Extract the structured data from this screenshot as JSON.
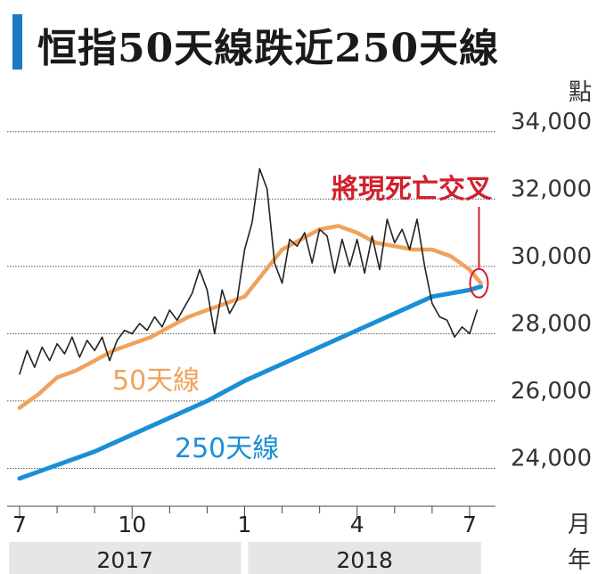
{
  "title": "恒指50天線跌近250天線",
  "colors": {
    "accent_bar": "#1d78c4",
    "index_line": "#222222",
    "ma50": "#f0a25c",
    "ma250": "#1a8fd6",
    "callout": "#d0202e",
    "grid": "#555555",
    "year_band": "#e6e6e6"
  },
  "chart_data": {
    "type": "line",
    "y_unit_label": "點",
    "x_unit_label": "月",
    "year_unit_label": "年",
    "ylim": [
      22900,
      35000
    ],
    "xlim": [
      0,
      12.5
    ],
    "y_ticks": [
      {
        "value": 34000,
        "label": "34,000"
      },
      {
        "value": 32000,
        "label": "32,000"
      },
      {
        "value": 30000,
        "label": "30,000"
      },
      {
        "value": 28000,
        "label": "28,000"
      },
      {
        "value": 26000,
        "label": "26,000"
      },
      {
        "value": 24000,
        "label": "24,000"
      }
    ],
    "x_ticks": [
      {
        "x": 0,
        "label": "7"
      },
      {
        "x": 3,
        "label": "10"
      },
      {
        "x": 6,
        "label": "1"
      },
      {
        "x": 9,
        "label": "4"
      },
      {
        "x": 12,
        "label": "7"
      }
    ],
    "years": [
      {
        "label": "2017",
        "from": 0,
        "to": 6
      },
      {
        "label": "2018",
        "from": 6,
        "to": 12.4
      }
    ],
    "series": [
      {
        "name": "",
        "role": "index",
        "x": [
          0,
          0.2,
          0.4,
          0.6,
          0.8,
          1.0,
          1.2,
          1.4,
          1.6,
          1.8,
          2.0,
          2.2,
          2.4,
          2.6,
          2.8,
          3.0,
          3.2,
          3.4,
          3.6,
          3.8,
          4.0,
          4.2,
          4.4,
          4.6,
          4.8,
          5.0,
          5.2,
          5.4,
          5.6,
          5.8,
          6.0,
          6.2,
          6.4,
          6.6,
          6.8,
          7.0,
          7.2,
          7.4,
          7.6,
          7.8,
          8.0,
          8.2,
          8.4,
          8.6,
          8.8,
          9.0,
          9.2,
          9.4,
          9.6,
          9.8,
          10.0,
          10.2,
          10.4,
          10.6,
          10.8,
          11.0,
          11.2,
          11.4,
          11.6,
          11.8,
          12.0,
          12.2
        ],
        "values": [
          26800,
          27500,
          27000,
          27600,
          27200,
          27700,
          27400,
          27900,
          27300,
          27800,
          27500,
          27900,
          27200,
          27800,
          28100,
          28000,
          28300,
          28100,
          28500,
          28200,
          28700,
          28400,
          28800,
          29200,
          29900,
          29300,
          28000,
          29300,
          28600,
          29000,
          30500,
          31300,
          32900,
          32300,
          30100,
          29500,
          30800,
          30600,
          31000,
          30100,
          31100,
          30900,
          29800,
          30800,
          30000,
          30800,
          29800,
          30900,
          29900,
          31400,
          30700,
          31100,
          30500,
          31400,
          30000,
          28900,
          28500,
          28400,
          27900,
          28200,
          28000,
          28700
        ]
      },
      {
        "name": "50天線",
        "role": "ma50",
        "x": [
          0,
          0.5,
          1.0,
          1.5,
          2.0,
          2.5,
          3.0,
          3.5,
          4.0,
          4.5,
          5.0,
          5.5,
          6.0,
          6.5,
          7.0,
          7.5,
          8.0,
          8.5,
          9.0,
          9.5,
          10.0,
          10.5,
          11.0,
          11.5,
          12.0,
          12.3
        ],
        "values": [
          25800,
          26200,
          26700,
          26900,
          27200,
          27500,
          27700,
          27900,
          28200,
          28500,
          28700,
          28900,
          29100,
          29800,
          30500,
          30800,
          31100,
          31200,
          31000,
          30700,
          30600,
          30500,
          30500,
          30300,
          29900,
          29500
        ]
      },
      {
        "name": "250天線",
        "role": "ma250",
        "x": [
          0,
          1,
          2,
          3,
          4,
          5,
          6,
          7,
          8,
          9,
          10,
          11,
          12,
          12.3
        ],
        "values": [
          23700,
          24100,
          24500,
          25000,
          25500,
          26000,
          26600,
          27100,
          27600,
          28100,
          28600,
          29100,
          29300,
          29400
        ]
      }
    ],
    "series_labels": [
      {
        "text": "50天線",
        "role": "ma50"
      },
      {
        "text": "250天線",
        "role": "ma250"
      }
    ],
    "annotation": {
      "text": "將現死亡交叉",
      "x": 12.25,
      "y": 29500
    }
  }
}
